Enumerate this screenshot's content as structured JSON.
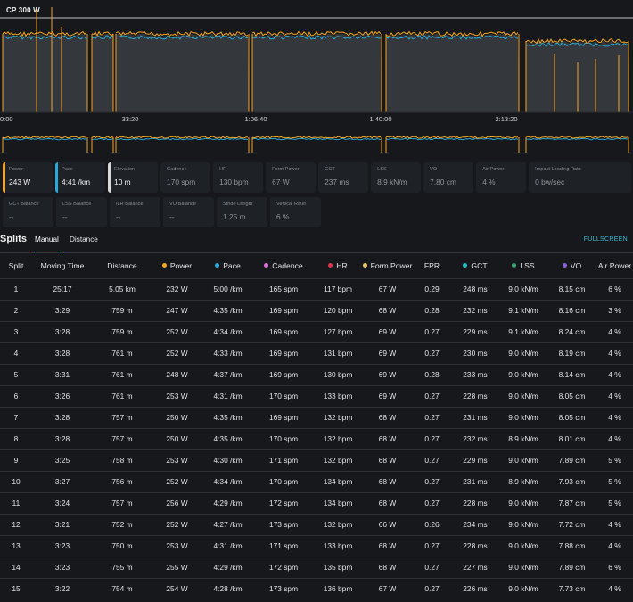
{
  "chart": {
    "cp_label": "CP 300 W",
    "x_ticks": [
      "0:00",
      "33:20",
      "1:06:40",
      "1:40:00",
      "2:13:20"
    ],
    "colors": {
      "power": "#f5a623",
      "pace": "#2aa8d8",
      "cp_line": "#bfbfbf",
      "bg_fill": "#3a3d42"
    }
  },
  "metrics": {
    "row1": [
      {
        "label": "Power",
        "value": "243 W",
        "active": true,
        "color": "#f5a623"
      },
      {
        "label": "Pace",
        "value": "4:41 /km",
        "active": true,
        "color": "#2aa8d8"
      },
      {
        "label": "Elevation",
        "value": "10 m",
        "active": true,
        "color": "#d9d9d9"
      },
      {
        "label": "Cadence",
        "value": "170 spm",
        "active": false
      },
      {
        "label": "HR",
        "value": "130 bpm",
        "active": false
      },
      {
        "label": "Form Power",
        "value": "67 W",
        "active": false
      },
      {
        "label": "GCT",
        "value": "237 ms",
        "active": false
      },
      {
        "label": "LSS",
        "value": "8.9 kN/m",
        "active": false
      },
      {
        "label": "VO",
        "value": "7.80 cm",
        "active": false
      },
      {
        "label": "Air Power",
        "value": "4 %",
        "active": false
      },
      {
        "label": "Impact Loading Rate",
        "value": "0 bw/sec",
        "active": false
      }
    ],
    "row2": [
      {
        "label": "GCT Balance",
        "value": "--"
      },
      {
        "label": "LSS Balance",
        "value": "--"
      },
      {
        "label": "ILR Balance",
        "value": "--"
      },
      {
        "label": "VO Balance",
        "value": "--"
      },
      {
        "label": "Stride Length",
        "value": "1.25 m"
      },
      {
        "label": "Vertical Ratio",
        "value": "6 %"
      }
    ]
  },
  "splits": {
    "title": "Splits",
    "tabs": [
      "Manual",
      "Distance"
    ],
    "fullscreen": "FULLSCREEN",
    "columns": [
      {
        "label": "Split"
      },
      {
        "label": "Moving Time"
      },
      {
        "label": "Distance"
      },
      {
        "label": "Power",
        "dot": "#f5a623"
      },
      {
        "label": "Pace",
        "dot": "#2aa8d8"
      },
      {
        "label": "Cadence",
        "dot": "#d86ed8"
      },
      {
        "label": "HR",
        "dot": "#e0334a"
      },
      {
        "label": "Form Power",
        "dot": "#e8c26a"
      },
      {
        "label": "FPR"
      },
      {
        "label": "GCT",
        "dot": "#1fbfbf"
      },
      {
        "label": "LSS",
        "dot": "#3aa873"
      },
      {
        "label": "VO",
        "dot": "#8a63d2"
      },
      {
        "label": "Air Power"
      }
    ],
    "rows": [
      [
        "1",
        "25:17",
        "5.05 km",
        "232 W",
        "5:00 /km",
        "165 spm",
        "117 bpm",
        "67 W",
        "0.29",
        "248 ms",
        "9.0 kN/m",
        "8.15 cm",
        "6 %"
      ],
      [
        "2",
        "3:29",
        "759 m",
        "247 W",
        "4:35 /km",
        "169 spm",
        "120 bpm",
        "68 W",
        "0.28",
        "232 ms",
        "9.1 kN/m",
        "8.16 cm",
        "3 %"
      ],
      [
        "3",
        "3:28",
        "759 m",
        "252 W",
        "4:34 /km",
        "169 spm",
        "127 bpm",
        "69 W",
        "0.27",
        "229 ms",
        "9.1 kN/m",
        "8.24 cm",
        "4 %"
      ],
      [
        "4",
        "3:28",
        "761 m",
        "252 W",
        "4:33 /km",
        "169 spm",
        "131 bpm",
        "69 W",
        "0.27",
        "230 ms",
        "9.0 kN/m",
        "8.19 cm",
        "4 %"
      ],
      [
        "5",
        "3:31",
        "761 m",
        "248 W",
        "4:37 /km",
        "169 spm",
        "130 bpm",
        "69 W",
        "0.28",
        "233 ms",
        "9.0 kN/m",
        "8.14 cm",
        "4 %"
      ],
      [
        "6",
        "3:26",
        "761 m",
        "253 W",
        "4:31 /km",
        "170 spm",
        "133 bpm",
        "69 W",
        "0.27",
        "228 ms",
        "9.0 kN/m",
        "8.05 cm",
        "4 %"
      ],
      [
        "7",
        "3:28",
        "757 m",
        "250 W",
        "4:35 /km",
        "169 spm",
        "132 bpm",
        "68 W",
        "0.27",
        "231 ms",
        "9.0 kN/m",
        "8.05 cm",
        "4 %"
      ],
      [
        "8",
        "3:28",
        "757 m",
        "250 W",
        "4:35 /km",
        "170 spm",
        "132 bpm",
        "68 W",
        "0.27",
        "232 ms",
        "8.9 kN/m",
        "8.01 cm",
        "4 %"
      ],
      [
        "9",
        "3:25",
        "758 m",
        "253 W",
        "4:30 /km",
        "171 spm",
        "132 bpm",
        "68 W",
        "0.27",
        "229 ms",
        "9.0 kN/m",
        "7.89 cm",
        "5 %"
      ],
      [
        "10",
        "3:27",
        "756 m",
        "252 W",
        "4:34 /km",
        "170 spm",
        "134 bpm",
        "68 W",
        "0.27",
        "231 ms",
        "8.9 kN/m",
        "7.93 cm",
        "5 %"
      ],
      [
        "11",
        "3:24",
        "757 m",
        "256 W",
        "4:29 /km",
        "172 spm",
        "134 bpm",
        "68 W",
        "0.27",
        "228 ms",
        "9.0 kN/m",
        "7.87 cm",
        "5 %"
      ],
      [
        "12",
        "3:21",
        "752 m",
        "252 W",
        "4:27 /km",
        "173 spm",
        "132 bpm",
        "66 W",
        "0.26",
        "234 ms",
        "9.0 kN/m",
        "7.72 cm",
        "4 %"
      ],
      [
        "13",
        "3:23",
        "750 m",
        "253 W",
        "4:31 /km",
        "171 spm",
        "133 bpm",
        "68 W",
        "0.27",
        "228 ms",
        "9.0 kN/m",
        "7.88 cm",
        "4 %"
      ],
      [
        "14",
        "3:23",
        "755 m",
        "255 W",
        "4:29 /km",
        "172 spm",
        "135 bpm",
        "68 W",
        "0.27",
        "227 ms",
        "9.0 kN/m",
        "7.89 cm",
        "6 %"
      ],
      [
        "15",
        "3:22",
        "754 m",
        "254 W",
        "4:28 /km",
        "173 spm",
        "136 bpm",
        "67 W",
        "0.27",
        "226 ms",
        "9.0 kN/m",
        "7.73 cm",
        "4 %"
      ]
    ]
  }
}
